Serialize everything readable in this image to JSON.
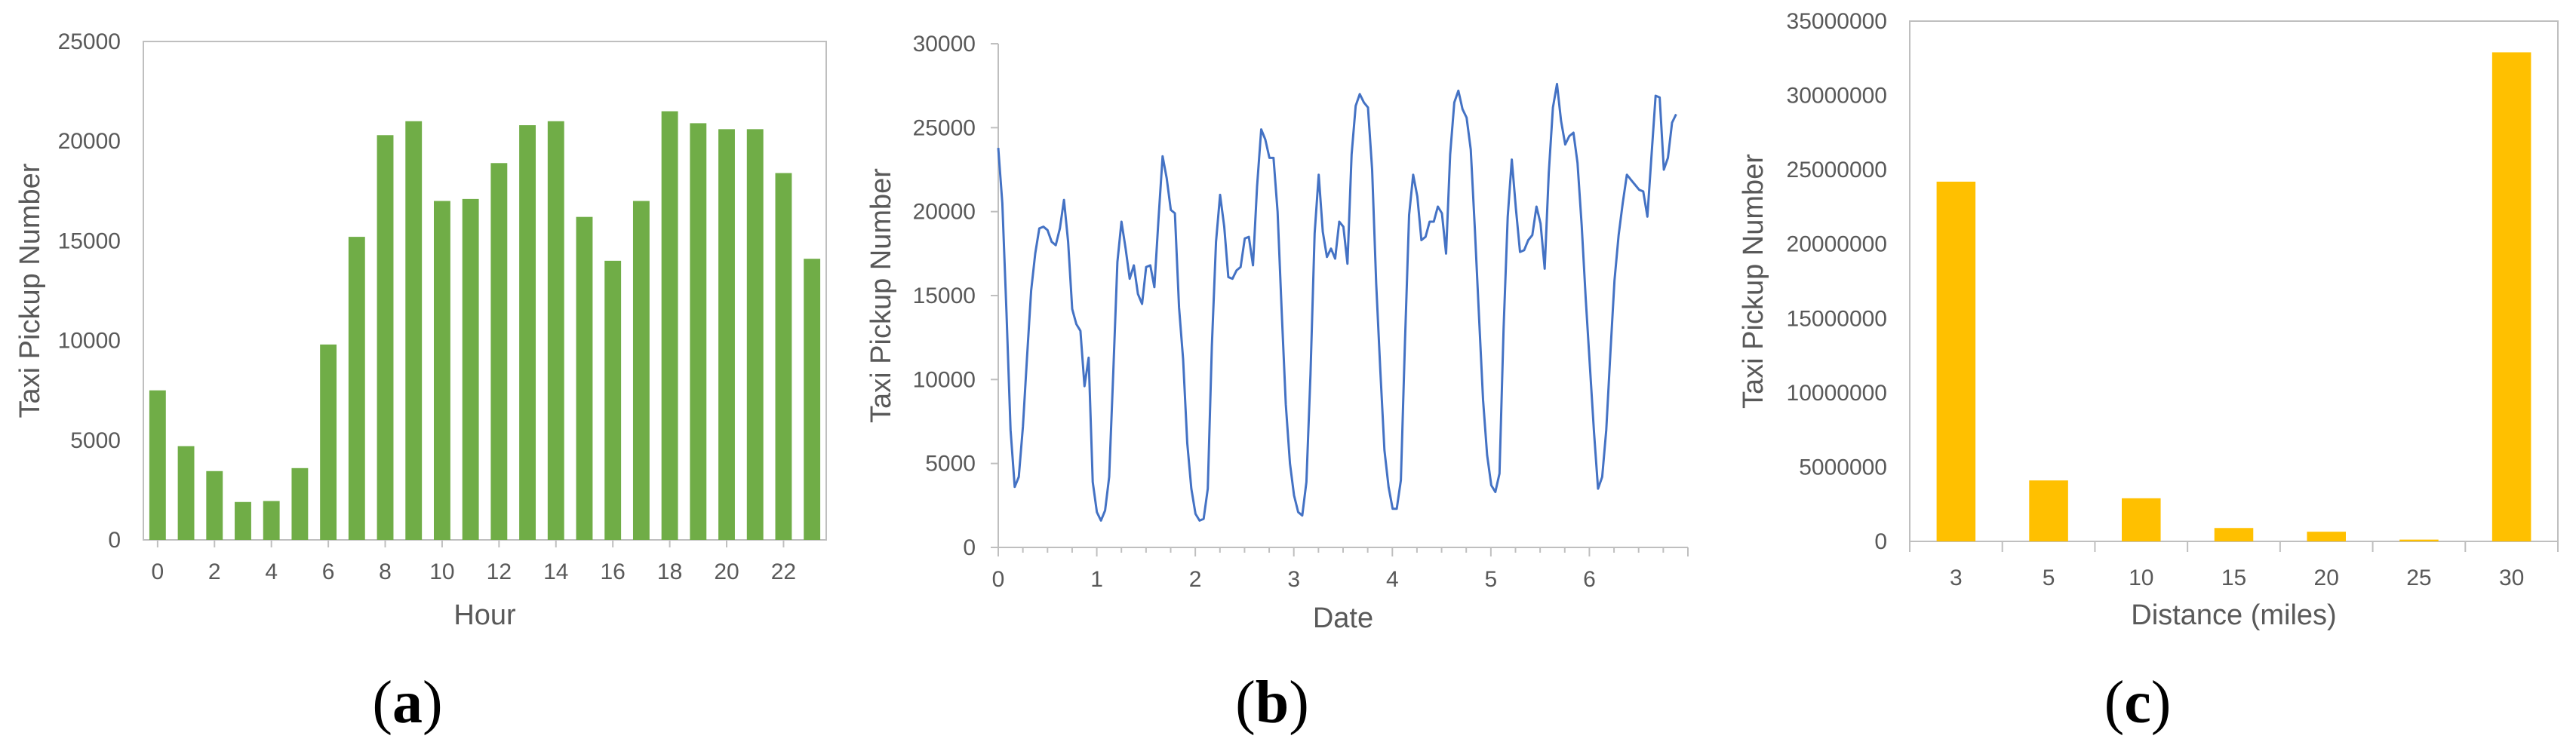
{
  "chart_data": [
    {
      "type": "bar",
      "panel_label": "(a)",
      "panel_letter": "a",
      "xlabel": "Hour",
      "ylabel": "Taxi Pickup Number",
      "ylim": [
        0,
        25000
      ],
      "yticks": [
        0,
        5000,
        10000,
        15000,
        20000,
        25000
      ],
      "xticks": [
        0,
        2,
        4,
        6,
        8,
        10,
        12,
        14,
        16,
        18,
        20,
        22
      ],
      "categories": [
        0,
        1,
        2,
        3,
        4,
        5,
        6,
        7,
        8,
        9,
        10,
        11,
        12,
        13,
        14,
        15,
        16,
        17,
        18,
        19,
        20,
        21,
        22,
        23
      ],
      "values": [
        7500,
        4700,
        3450,
        1900,
        1950,
        3600,
        9800,
        15200,
        20300,
        21000,
        17000,
        17100,
        18900,
        20800,
        21000,
        16200,
        14000,
        17000,
        21500,
        20900,
        20600,
        20600,
        18400,
        14100
      ],
      "color": "#70ad47",
      "grid": false
    },
    {
      "type": "line",
      "panel_label": "(b)",
      "panel_letter": "b",
      "xlabel": "Date",
      "ylabel": "Taxi Pickup Number",
      "xlim": [
        0,
        7
      ],
      "ylim": [
        0,
        30000
      ],
      "yticks": [
        0,
        5000,
        10000,
        15000,
        20000,
        25000,
        30000
      ],
      "xticks": [
        0,
        1,
        2,
        3,
        4,
        5,
        6
      ],
      "color": "#4472c4",
      "grid": false,
      "x_step": 0.0417,
      "values": [
        23800,
        20500,
        14000,
        7000,
        3600,
        4200,
        7200,
        11300,
        15300,
        17500,
        19000,
        19100,
        18900,
        18200,
        18000,
        19000,
        20700,
        18200,
        14200,
        13300,
        12900,
        9600,
        11300,
        3900,
        2100,
        1600,
        2200,
        4200,
        10500,
        17000,
        19400,
        17800,
        16000,
        16800,
        15100,
        14500,
        16700,
        16800,
        15500,
        19500,
        23300,
        22000,
        20100,
        19900,
        14300,
        11200,
        6200,
        3500,
        2000,
        1600,
        1700,
        3500,
        12000,
        18200,
        21000,
        19100,
        16100,
        16000,
        16500,
        16700,
        18400,
        18500,
        16800,
        21500,
        24900,
        24300,
        23200,
        23200,
        20000,
        14000,
        8500,
        5000,
        3100,
        2100,
        1900,
        3900,
        10300,
        18700,
        22200,
        18800,
        17300,
        17800,
        17200,
        19400,
        19100,
        16900,
        23400,
        26300,
        27000,
        26500,
        26200,
        22500,
        15700,
        10500,
        5800,
        3600,
        2300,
        2300,
        4000,
        12200,
        19800,
        22200,
        20900,
        18300,
        18500,
        19400,
        19400,
        20300,
        19900,
        17500,
        23400,
        26500,
        27200,
        26100,
        25600,
        23700,
        19000,
        13900,
        8800,
        5500,
        3700,
        3300,
        4400,
        13000,
        19700,
        23100,
        20200,
        17600,
        17700,
        18300,
        18600,
        20300,
        19300,
        16600,
        22300,
        26200,
        27600,
        25400,
        24000,
        24500,
        24700,
        22900,
        19200,
        14800,
        10800,
        6900,
        3500,
        4200,
        7000,
        11600,
        15900,
        18600,
        20500,
        22200,
        21900,
        21600,
        21300,
        21200,
        19700,
        23300,
        26900,
        26800,
        22500,
        23200,
        25300,
        25800
      ]
    },
    {
      "type": "bar",
      "panel_label": "(c)",
      "panel_letter": "c",
      "xlabel": "Distance (miles)",
      "ylabel": "Taxi Pickup Number",
      "ylim": [
        0,
        35000000
      ],
      "yticks": [
        0,
        5000000,
        10000000,
        15000000,
        20000000,
        25000000,
        30000000,
        35000000
      ],
      "categories": [
        "3",
        "5",
        "10",
        "15",
        "20",
        "25",
        "30"
      ],
      "values": [
        24200000,
        4100000,
        2900000,
        900000,
        650000,
        120000,
        32900000
      ],
      "color": "#ffc000",
      "grid": false
    }
  ]
}
